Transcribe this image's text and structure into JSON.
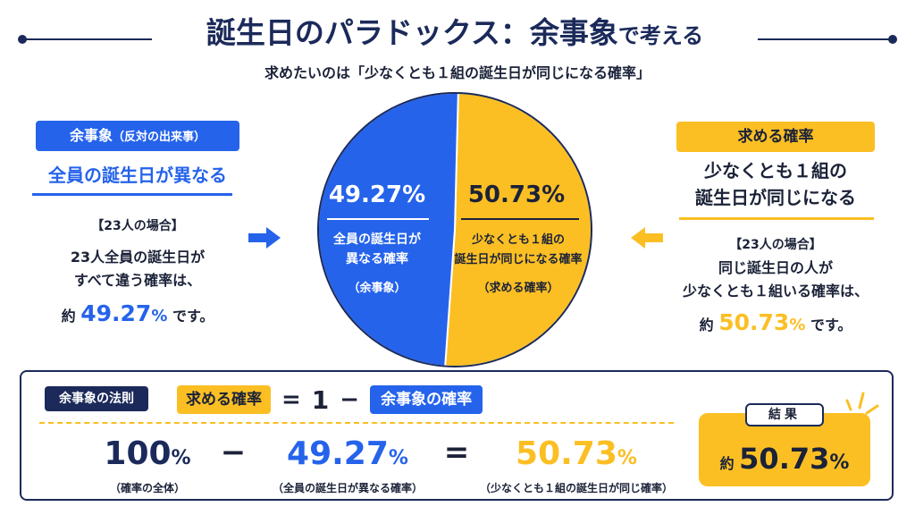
{
  "title": {
    "main": "誕生日のパラドックス：余事象",
    "suffix": "で考える"
  },
  "subtitle": "求めたいのは「少なくとも１組の誕生日が同じになる確率」",
  "left": {
    "tag_main": "余事象",
    "tag_paren": "（反対の出来事）",
    "heading": "全員の誕生日が異なる",
    "case": "【23人の場合】",
    "body_line1": "23人全員の誕生日が",
    "body_line2": "すべて違う確率は、",
    "approx_prefix": "約",
    "value": "49.27",
    "unit": "%",
    "approx_suffix": "です。"
  },
  "right": {
    "tag": "求める確率",
    "heading_line1": "少なくとも１組の",
    "heading_line2": "誕生日が同じになる",
    "case": "【23人の場合】",
    "body_line1": "同じ誕生日の人が",
    "body_line2": "少なくとも１組いる確率は、",
    "approx_prefix": "約",
    "value": "50.73",
    "unit": "%",
    "approx_suffix": "です。"
  },
  "pie": {
    "blue": {
      "value_text": "49.27%",
      "label_line1": "全員の誕生日が",
      "label_line2": "異なる確率",
      "sub": "（余事象）",
      "color": "#2563eb"
    },
    "yellow": {
      "value_text": "50.73%",
      "label_line1": "少なくとも１組の",
      "label_line2": "誕生日が同じになる確率",
      "sub": "（求める確率）",
      "color": "#fbbf24"
    }
  },
  "chart_data": {
    "type": "pie",
    "categories": [
      "全員の誕生日が異なる確率",
      "少なくとも１組の誕生日が同じになる確率"
    ],
    "values": [
      49.27,
      50.73
    ],
    "colors": [
      "#2563eb",
      "#fbbf24"
    ]
  },
  "bottom": {
    "law_tag": "余事象の法則",
    "formula_target": "求める確率",
    "formula_eq": "=",
    "formula_one": "1",
    "formula_minus": "−",
    "formula_comp": "余事象の確率",
    "calc": [
      {
        "num": "100",
        "unit": "%",
        "caption": "（確率の全体）"
      },
      {
        "num": "49.27",
        "unit": "%",
        "caption": "（全員の誕生日が異なる確率）"
      },
      {
        "num": "50.73",
        "unit": "%",
        "caption": "（少なくとも１組の誕生日が同じ確率）"
      }
    ],
    "calc_minus": "−",
    "calc_eq": "=",
    "result_tag": "結果",
    "result_prefix": "約",
    "result_value": "50.73",
    "result_unit": "%"
  },
  "colors": {
    "navy": "#1b2a5a",
    "blue": "#2563eb",
    "yellow": "#fbbf24"
  }
}
